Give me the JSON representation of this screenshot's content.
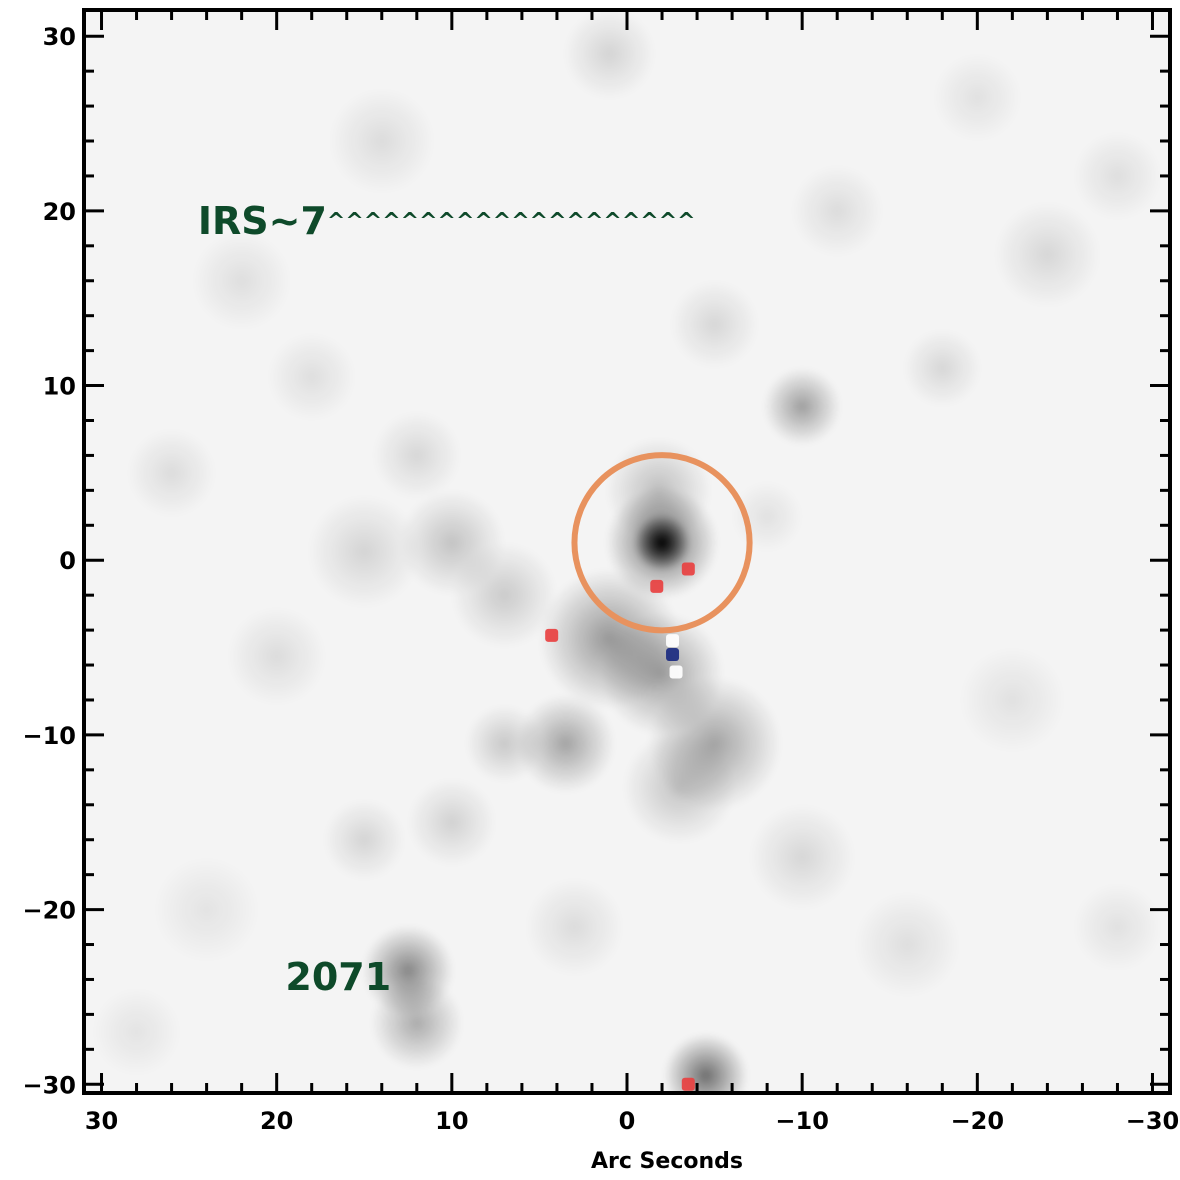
{
  "figure": {
    "xlabel": "Arc Seconds",
    "ylabel": "",
    "x_ticks": [
      "30",
      "20",
      "10",
      "0",
      "−10",
      "−20",
      "−30"
    ],
    "y_ticks": [
      "30",
      "20",
      "10",
      "0",
      "−10",
      "−20",
      "−30"
    ],
    "x_tick_values": [
      30,
      20,
      10,
      0,
      -10,
      -20,
      -30
    ],
    "y_tick_values": [
      30,
      20,
      10,
      0,
      -10,
      -20,
      -30
    ],
    "xlim": [
      31,
      -31
    ],
    "ylim": [
      -30.5,
      31.5
    ],
    "annotations": {
      "irs": {
        "text": "IRS~7",
        "trail": "^^^^^^^^^^^^^^^^^^^^",
        "x": 24.5,
        "y": 19.6
      },
      "src": {
        "text": "2071",
        "x": 19.5,
        "y": -23.7
      }
    },
    "colors": {
      "label": "#0e4a2a",
      "circle": "#e8925e",
      "red_marker": "#e84040",
      "blue_marker": "#1a2a80",
      "background_sky": "#f4f4f4"
    },
    "circle": {
      "cx": -2.0,
      "cy": 1.0,
      "r": 5.0
    },
    "red_markers": [
      {
        "x": -1.7,
        "y": -1.5
      },
      {
        "x": -3.5,
        "y": -0.5
      },
      {
        "x": 4.3,
        "y": -4.3
      },
      {
        "x": -3.5,
        "y": -30.0
      }
    ],
    "white_markers": [
      {
        "x": -2.6,
        "y": -4.6
      },
      {
        "x": -2.8,
        "y": -6.4
      }
    ],
    "blue_markers": [
      {
        "x": -2.6,
        "y": -5.4
      }
    ],
    "blobs": [
      {
        "x": -2.0,
        "y": 1.0,
        "s": 1.6,
        "a": 1.0
      },
      {
        "x": -2.0,
        "y": 1.0,
        "s": 3.2,
        "a": 0.55
      },
      {
        "x": -1.8,
        "y": 4.0,
        "s": 3.0,
        "a": 0.22
      },
      {
        "x": -10.0,
        "y": 8.8,
        "s": 2.2,
        "a": 0.35
      },
      {
        "x": 1.0,
        "y": -4.5,
        "s": 4.0,
        "a": 0.38
      },
      {
        "x": -2.0,
        "y": -6.5,
        "s": 3.5,
        "a": 0.35
      },
      {
        "x": -5.0,
        "y": -10.5,
        "s": 3.8,
        "a": 0.33
      },
      {
        "x": 3.5,
        "y": -10.5,
        "s": 2.8,
        "a": 0.33
      },
      {
        "x": -3.0,
        "y": -13.0,
        "s": 3.2,
        "a": 0.2
      },
      {
        "x": 12.5,
        "y": -23.5,
        "s": 2.6,
        "a": 0.45
      },
      {
        "x": 12.0,
        "y": -26.5,
        "s": 2.6,
        "a": 0.3
      },
      {
        "x": -4.5,
        "y": -29.5,
        "s": 2.4,
        "a": 0.55
      },
      {
        "x": 10.0,
        "y": 1.0,
        "s": 3.0,
        "a": 0.2
      },
      {
        "x": 15.0,
        "y": 0.5,
        "s": 3.2,
        "a": 0.13
      },
      {
        "x": 7.0,
        "y": -2.0,
        "s": 3.0,
        "a": 0.17
      },
      {
        "x": 12.0,
        "y": 6.0,
        "s": 2.5,
        "a": 0.12
      },
      {
        "x": 7.0,
        "y": -10.5,
        "s": 2.2,
        "a": 0.18
      },
      {
        "x": 10.0,
        "y": -15.0,
        "s": 2.5,
        "a": 0.14
      },
      {
        "x": 15.0,
        "y": -16.0,
        "s": 2.3,
        "a": 0.13
      },
      {
        "x": 20.0,
        "y": -5.5,
        "s": 2.8,
        "a": 0.1
      },
      {
        "x": 26.0,
        "y": 5.0,
        "s": 2.5,
        "a": 0.1
      },
      {
        "x": 18.0,
        "y": 10.5,
        "s": 2.5,
        "a": 0.09
      },
      {
        "x": 22.0,
        "y": 16.0,
        "s": 2.8,
        "a": 0.09
      },
      {
        "x": 14.0,
        "y": 24.0,
        "s": 3.0,
        "a": 0.1
      },
      {
        "x": 1.0,
        "y": 29.0,
        "s": 2.6,
        "a": 0.13
      },
      {
        "x": -5.0,
        "y": 13.5,
        "s": 2.5,
        "a": 0.12
      },
      {
        "x": -12.0,
        "y": 20.0,
        "s": 2.6,
        "a": 0.1
      },
      {
        "x": -18.0,
        "y": 11.0,
        "s": 2.2,
        "a": 0.12
      },
      {
        "x": -24.0,
        "y": 17.5,
        "s": 3.0,
        "a": 0.12
      },
      {
        "x": -28.0,
        "y": 22.0,
        "s": 2.5,
        "a": 0.09
      },
      {
        "x": -20.0,
        "y": 26.5,
        "s": 2.5,
        "a": 0.08
      },
      {
        "x": -10.0,
        "y": -17.0,
        "s": 3.0,
        "a": 0.12
      },
      {
        "x": -16.0,
        "y": -22.0,
        "s": 3.0,
        "a": 0.09
      },
      {
        "x": -28.0,
        "y": -21.0,
        "s": 2.5,
        "a": 0.08
      },
      {
        "x": -22.0,
        "y": -8.0,
        "s": 3.0,
        "a": 0.08
      },
      {
        "x": 24.0,
        "y": -20.0,
        "s": 3.0,
        "a": 0.07
      },
      {
        "x": 3.0,
        "y": -21.0,
        "s": 2.8,
        "a": 0.1
      },
      {
        "x": 28.0,
        "y": -27.0,
        "s": 2.5,
        "a": 0.07
      },
      {
        "x": -8.0,
        "y": 2.5,
        "s": 2.0,
        "a": 0.08
      }
    ]
  }
}
